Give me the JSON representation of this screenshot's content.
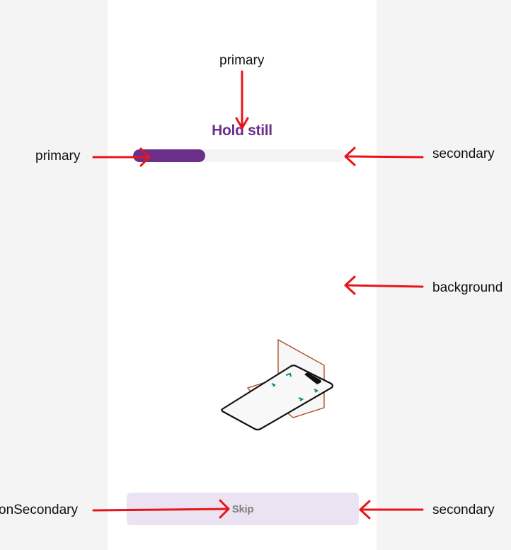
{
  "screen": {
    "title": "Hold still",
    "progress_fraction": 0.34,
    "skip_label": "Skip"
  },
  "annotations": {
    "top": "primary",
    "left_progress": "primary",
    "right_progress": "secondary",
    "right_background": "background",
    "left_skip": "onSecondary",
    "right_skip": "secondary"
  },
  "colors": {
    "primary": "#6b2f8a",
    "secondary": "#f4f4f4",
    "background": "#ffffff",
    "on_secondary": "#808080",
    "skip_button_bg": "#ebe3f1",
    "arrow": "#e8141a",
    "illustration_stand": "#a8481f",
    "illustration_phone": "#111111",
    "illustration_mark": "#0f8f7e"
  }
}
